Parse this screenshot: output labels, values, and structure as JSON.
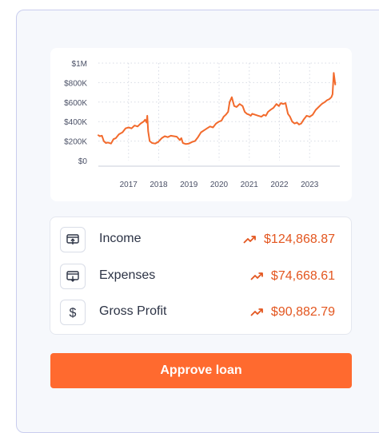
{
  "chart_data": {
    "type": "line",
    "title": "",
    "xlabel": "",
    "ylabel": "",
    "ylim": [
      0,
      1000000
    ],
    "xlim": [
      2016.0,
      2024.0
    ],
    "y_ticks": [
      {
        "value": 0,
        "label": "$0"
      },
      {
        "value": 200000,
        "label": "$200K"
      },
      {
        "value": 400000,
        "label": "$400K"
      },
      {
        "value": 600000,
        "label": "$600K"
      },
      {
        "value": 800000,
        "label": "$800K"
      },
      {
        "value": 1000000,
        "label": "$1M"
      }
    ],
    "x_ticks": [
      {
        "value": 2017,
        "label": "2017"
      },
      {
        "value": 2018,
        "label": "2018"
      },
      {
        "value": 2019,
        "label": "2019"
      },
      {
        "value": 2020,
        "label": "2020"
      },
      {
        "value": 2021,
        "label": "2021"
      },
      {
        "value": 2022,
        "label": "2022"
      },
      {
        "value": 2023,
        "label": "2023"
      }
    ],
    "grid": true,
    "series": [
      {
        "color": "#f26a2c",
        "points": [
          [
            2016.0,
            260000
          ],
          [
            2016.05,
            250000
          ],
          [
            2016.12,
            255000
          ],
          [
            2016.18,
            200000
          ],
          [
            2016.25,
            180000
          ],
          [
            2016.32,
            185000
          ],
          [
            2016.42,
            175000
          ],
          [
            2016.5,
            220000
          ],
          [
            2016.58,
            230000
          ],
          [
            2016.68,
            270000
          ],
          [
            2016.8,
            290000
          ],
          [
            2016.9,
            330000
          ],
          [
            2017.0,
            340000
          ],
          [
            2017.1,
            330000
          ],
          [
            2017.2,
            360000
          ],
          [
            2017.3,
            350000
          ],
          [
            2017.4,
            380000
          ],
          [
            2017.5,
            400000
          ],
          [
            2017.55,
            420000
          ],
          [
            2017.6,
            390000
          ],
          [
            2017.62,
            460000
          ],
          [
            2017.65,
            300000
          ],
          [
            2017.7,
            200000
          ],
          [
            2017.78,
            180000
          ],
          [
            2017.88,
            175000
          ],
          [
            2017.98,
            190000
          ],
          [
            2018.1,
            230000
          ],
          [
            2018.2,
            250000
          ],
          [
            2018.3,
            240000
          ],
          [
            2018.4,
            255000
          ],
          [
            2018.5,
            250000
          ],
          [
            2018.6,
            245000
          ],
          [
            2018.7,
            210000
          ],
          [
            2018.75,
            230000
          ],
          [
            2018.8,
            180000
          ],
          [
            2018.9,
            170000
          ],
          [
            2019.0,
            175000
          ],
          [
            2019.1,
            190000
          ],
          [
            2019.2,
            200000
          ],
          [
            2019.3,
            240000
          ],
          [
            2019.4,
            290000
          ],
          [
            2019.5,
            310000
          ],
          [
            2019.6,
            330000
          ],
          [
            2019.7,
            350000
          ],
          [
            2019.8,
            340000
          ],
          [
            2019.9,
            380000
          ],
          [
            2020.0,
            400000
          ],
          [
            2020.08,
            410000
          ],
          [
            2020.15,
            450000
          ],
          [
            2020.22,
            470000
          ],
          [
            2020.3,
            500000
          ],
          [
            2020.35,
            600000
          ],
          [
            2020.42,
            650000
          ],
          [
            2020.5,
            560000
          ],
          [
            2020.58,
            550000
          ],
          [
            2020.68,
            580000
          ],
          [
            2020.78,
            560000
          ],
          [
            2020.85,
            500000
          ],
          [
            2020.92,
            480000
          ],
          [
            2021.0,
            470000
          ],
          [
            2021.05,
            460000
          ],
          [
            2021.1,
            480000
          ],
          [
            2021.2,
            470000
          ],
          [
            2021.3,
            460000
          ],
          [
            2021.4,
            450000
          ],
          [
            2021.48,
            470000
          ],
          [
            2021.55,
            460000
          ],
          [
            2021.62,
            500000
          ],
          [
            2021.7,
            520000
          ],
          [
            2021.8,
            540000
          ],
          [
            2021.9,
            580000
          ],
          [
            2021.98,
            560000
          ],
          [
            2022.05,
            590000
          ],
          [
            2022.12,
            580000
          ],
          [
            2022.2,
            590000
          ],
          [
            2022.28,
            480000
          ],
          [
            2022.35,
            450000
          ],
          [
            2022.42,
            400000
          ],
          [
            2022.5,
            380000
          ],
          [
            2022.58,
            390000
          ],
          [
            2022.65,
            370000
          ],
          [
            2022.72,
            380000
          ],
          [
            2022.8,
            420000
          ],
          [
            2022.9,
            460000
          ],
          [
            2023.0,
            450000
          ],
          [
            2023.1,
            470000
          ],
          [
            2023.2,
            520000
          ],
          [
            2023.3,
            550000
          ],
          [
            2023.4,
            580000
          ],
          [
            2023.5,
            600000
          ],
          [
            2023.58,
            620000
          ],
          [
            2023.65,
            630000
          ],
          [
            2023.72,
            650000
          ],
          [
            2023.76,
            680000
          ],
          [
            2023.8,
            900000
          ],
          [
            2023.85,
            780000
          ]
        ]
      }
    ]
  },
  "metrics": [
    {
      "label": "Income",
      "value": "$124,868.87",
      "icon": "upload-box-icon",
      "trend_icon": "trend-up-icon"
    },
    {
      "label": "Expenses",
      "value": "$74,668.61",
      "icon": "download-box-icon",
      "trend_icon": "trend-up-icon"
    },
    {
      "label": "Gross Profit",
      "value": "$90,882.79",
      "icon": "dollar-icon",
      "trend_icon": "trend-up-icon"
    }
  ],
  "approve_button": {
    "label": "Approve loan"
  },
  "colors": {
    "accent": "#ff6a2f",
    "value_text": "#e3561f",
    "line": "#f26a2c"
  }
}
